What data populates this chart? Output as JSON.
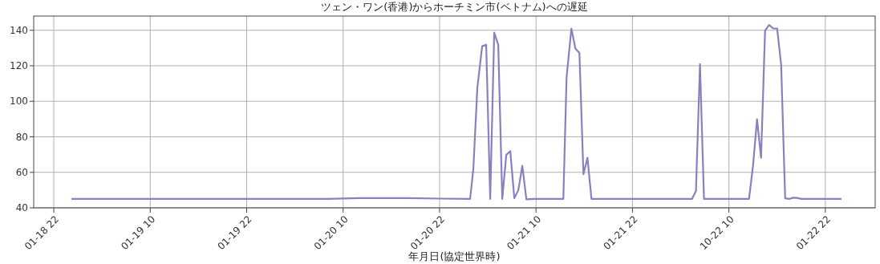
{
  "chart_data": {
    "type": "line",
    "title": "ツェン・ワン(香港)からホーチミン市(ベトナム)への遅延",
    "xlabel": "年月日(協定世界時)",
    "xlim": [
      "--01-18T19:30",
      "--01-23T04:12"
    ],
    "ylim": [
      40,
      148
    ],
    "yticks": [
      40,
      60,
      80,
      100,
      120,
      140
    ],
    "xticks": [
      {
        "value": "--01-18T22:00",
        "label": "01-18 22"
      },
      {
        "value": "--01-19T10:00",
        "label": "01-19 10"
      },
      {
        "value": "--01-19T22:00",
        "label": "01-19 22"
      },
      {
        "value": "--01-20T10:00",
        "label": "01-20 10"
      },
      {
        "value": "--01-20T22:00",
        "label": "01-20 22"
      },
      {
        "value": "--01-21T10:00",
        "label": "01-21 10"
      },
      {
        "value": "--01-21T22:00",
        "label": "01-21 22"
      },
      {
        "value": "--01-22T10:00",
        "label": "10-22 10"
      },
      {
        "value": "--01-22T22:00",
        "label": "01-22 22"
      }
    ],
    "grid": true,
    "marker": "none",
    "line_style": "solid",
    "series": [
      {
        "color": "#8a80c0",
        "x": [
          "--01-19T00:12",
          "--01-19T10:00",
          "--01-19T18:00",
          "--01-20T02:00",
          "--01-20T08:00",
          "--01-20T12:00",
          "--01-20T18:00",
          "--01-20T22:00",
          "--01-21T01:48",
          "--01-21T02:12",
          "--01-21T02:42",
          "--01-21T03:18",
          "--01-21T03:48",
          "--01-21T04:18",
          "--01-21T04:48",
          "--01-21T05:18",
          "--01-21T05:48",
          "--01-21T06:18",
          "--01-21T06:48",
          "--01-21T07:18",
          "--01-21T07:48",
          "--01-21T08:18",
          "--01-21T08:48",
          "--01-21T09:48",
          "--01-21T13:24",
          "--01-21T13:48",
          "--01-21T14:24",
          "--01-21T14:54",
          "--01-21T15:24",
          "--01-21T15:54",
          "--01-21T16:24",
          "--01-21T16:54",
          "--01-21T23:00",
          "--01-22T05:24",
          "--01-22T05:54",
          "--01-22T06:24",
          "--01-22T06:54",
          "--01-22T07:54",
          "--01-22T12:30",
          "--01-22T13:00",
          "--01-22T13:30",
          "--01-22T14:00",
          "--01-22T14:30",
          "--01-22T15:00",
          "--01-22T15:30",
          "--01-22T16:00",
          "--01-22T16:30",
          "--01-22T17:00",
          "--01-22T17:30",
          "--01-22T18:00",
          "--01-22T18:30",
          "--01-22T19:00",
          "--01-23T00:00"
        ],
        "values": [
          45,
          45,
          45,
          45,
          45,
          45.5,
          45.5,
          45.2,
          45,
          61.8,
          107.6,
          131,
          131.8,
          45,
          138.7,
          131.8,
          45,
          69.8,
          71.9,
          45.4,
          50,
          63.7,
          44.8,
          45,
          45,
          113.3,
          141,
          129.7,
          127.2,
          58.9,
          68.2,
          45,
          45,
          45,
          49.5,
          121,
          45,
          45,
          45,
          63.7,
          89.9,
          68.2,
          139.8,
          143,
          141,
          141,
          120.5,
          45.4,
          45,
          45.7,
          45.6,
          45,
          45
        ]
      }
    ]
  }
}
